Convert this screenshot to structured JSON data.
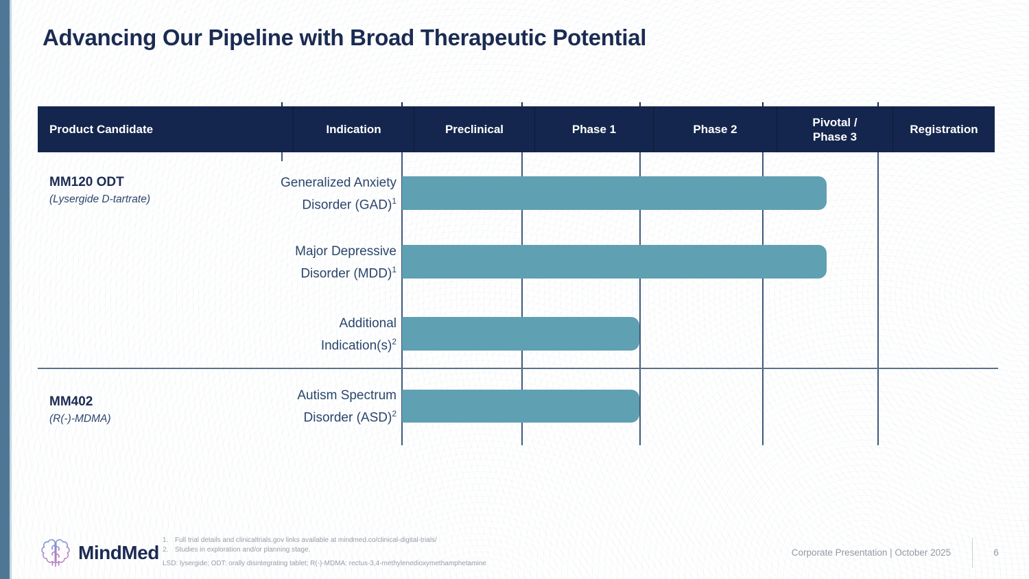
{
  "slide": {
    "title": "Advancing Our Pipeline with Broad Therapeutic Potential",
    "footer_meta": "Corporate Presentation | October 2025",
    "page_number": "6",
    "logo_text": "MindMed"
  },
  "colors": {
    "header_navy": "#14264D",
    "title_navy": "#1B2B52",
    "bar_teal": "#5FA0B2",
    "grid_line": "#3F587B",
    "separator": "#5A7287",
    "left_edge": "#4E7795",
    "left_edge_light": "#C6D7E3",
    "footer_gray": "#9399A0"
  },
  "table": {
    "columns": [
      "Product Candidate",
      "Indication",
      "Preclinical",
      "Phase 1",
      "Phase 2",
      "Pivotal / Phase 3",
      "Registration"
    ]
  },
  "chart_data": {
    "type": "bar",
    "title": "Advancing Our Pipeline with Broad Therapeutic Potential",
    "stages": [
      "Preclinical",
      "Phase 1",
      "Phase 2",
      "Pivotal / Phase 3",
      "Registration"
    ],
    "bar_color": "#5FA0B2",
    "legend_position": "none",
    "grid": true,
    "rows": [
      {
        "product": "MM120 ODT",
        "compound": "(Lysergide D-tartrate)",
        "indication": "Generalized Anxiety Disorder (GAD)",
        "indication_line1": "Generalized Anxiety",
        "indication_line2": "Disorder (GAD)",
        "footnote_sup": "1",
        "progress_through": "Pivotal / Phase 3",
        "stages_spanned": 3.55,
        "bar_span_frac": 0.716
      },
      {
        "product": "MM120 ODT",
        "compound": "(Lysergide D-tartrate)",
        "indication": "Major Depressive Disorder (MDD)",
        "indication_line1": "Major Depressive",
        "indication_line2": "Disorder (MDD)",
        "footnote_sup": "1",
        "progress_through": "Pivotal / Phase 3",
        "stages_spanned": 3.55,
        "bar_span_frac": 0.716
      },
      {
        "product": "MM120 ODT",
        "compound": "(Lysergide D-tartrate)",
        "indication": "Additional Indication(s)",
        "indication_line1": "Additional",
        "indication_line2": "Indication(s)",
        "footnote_sup": "2",
        "progress_through": "Phase 1",
        "stages_spanned": 2.0,
        "bar_span_frac": 0.4
      },
      {
        "product": "MM402",
        "compound": "(R(-)-MDMA)",
        "indication": "Autism Spectrum Disorder (ASD)",
        "indication_line1": "Autism Spectrum",
        "indication_line2": "Disorder (ASD)",
        "footnote_sup": "2",
        "progress_through": "Phase 1",
        "stages_spanned": 2.0,
        "bar_span_frac": 0.4
      }
    ]
  },
  "footnotes": {
    "items": [
      {
        "num": "1.",
        "text": "Full trial details and clinicaltrials.gov links available at mindmed.co/clinical-digital-trials/"
      },
      {
        "num": "2.",
        "text": "Studies in exploration and/or planning stage."
      }
    ],
    "abbreviations": "LSD: lysergide; ODT: orally disintegrating tablet; R(-)-MDMA: rectus-3,4-methylenedioxymethamphetamine"
  }
}
